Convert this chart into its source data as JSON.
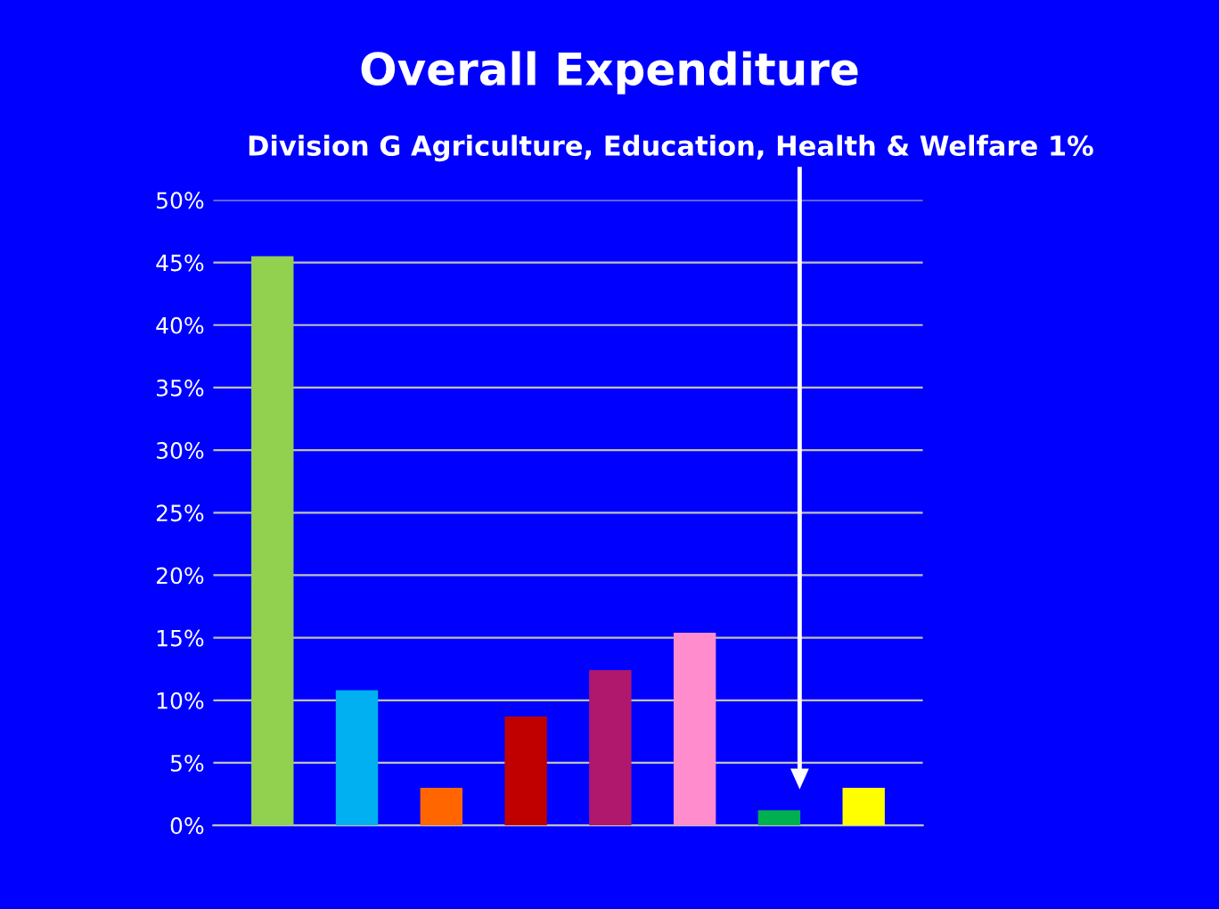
{
  "chart_data": {
    "type": "bar",
    "title": "Overall Expenditure",
    "annotations": [
      "Division G Agriculture, Education, Health & Welfare 1%"
    ],
    "categories": [
      null,
      null,
      null,
      null,
      null,
      null,
      null,
      null
    ],
    "values": [
      45.5,
      10.8,
      3.0,
      8.7,
      12.4,
      15.4,
      1.2,
      3.0
    ],
    "colors": [
      "#92d050",
      "#00b0f0",
      "#ff6600",
      "#c00000",
      "#b0186e",
      "#ff8ccc",
      "#00b050",
      "#ffff00"
    ],
    "ylim": [
      0,
      50
    ],
    "yticks": [
      {
        "value": 0,
        "label": "0%"
      },
      {
        "value": 5,
        "label": "5%"
      },
      {
        "value": 10,
        "label": "10%"
      },
      {
        "value": 15,
        "label": "15%"
      },
      {
        "value": 20,
        "label": "20%"
      },
      {
        "value": 25,
        "label": "25%"
      },
      {
        "value": 30,
        "label": "30%"
      },
      {
        "value": 35,
        "label": "35%"
      },
      {
        "value": 40,
        "label": "40%"
      },
      {
        "value": 45,
        "label": "45%"
      },
      {
        "value": 50,
        "label": "50%"
      }
    ],
    "grid": "y"
  }
}
